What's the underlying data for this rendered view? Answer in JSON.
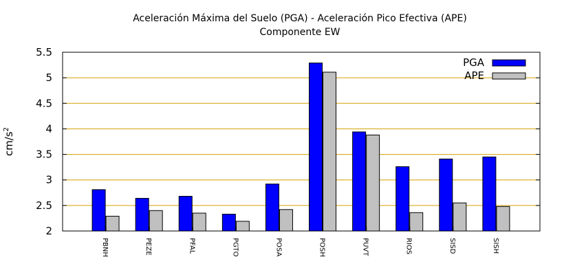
{
  "chart_data": {
    "type": "bar",
    "title": "Aceleración Máxima del Suelo (PGA) -  Aceleración Pico Efectiva (APE)",
    "subtitle": "Componente EW",
    "ylabel": "cm/s",
    "ylabel_sup": "2",
    "xlabel": "",
    "ylim": [
      2,
      5.5
    ],
    "yticks": [
      2,
      2.5,
      3,
      3.5,
      4,
      4.5,
      5,
      5.5
    ],
    "ytick_labels": [
      "2",
      "2.5",
      "3",
      "3.5",
      "4",
      "4.5",
      "5",
      "5.5"
    ],
    "categories": [
      "PBNH",
      "PEZE",
      "PFAL",
      "PGTO",
      "POSA",
      "POSH",
      "PUVT",
      "RIOS",
      "SISD",
      "SISH"
    ],
    "series": [
      {
        "name": "PGA",
        "color": "#0000ff",
        "values": [
          2.81,
          2.64,
          2.68,
          2.33,
          2.92,
          5.29,
          3.94,
          3.26,
          3.41,
          3.45
        ]
      },
      {
        "name": "APE",
        "color": "#c0c0c0",
        "values": [
          2.29,
          2.4,
          2.35,
          2.19,
          2.42,
          5.11,
          3.88,
          2.36,
          2.55,
          2.48
        ]
      }
    ],
    "grid": "horizontal",
    "grid_color": "#d4a000",
    "legend_position": "top-right"
  }
}
